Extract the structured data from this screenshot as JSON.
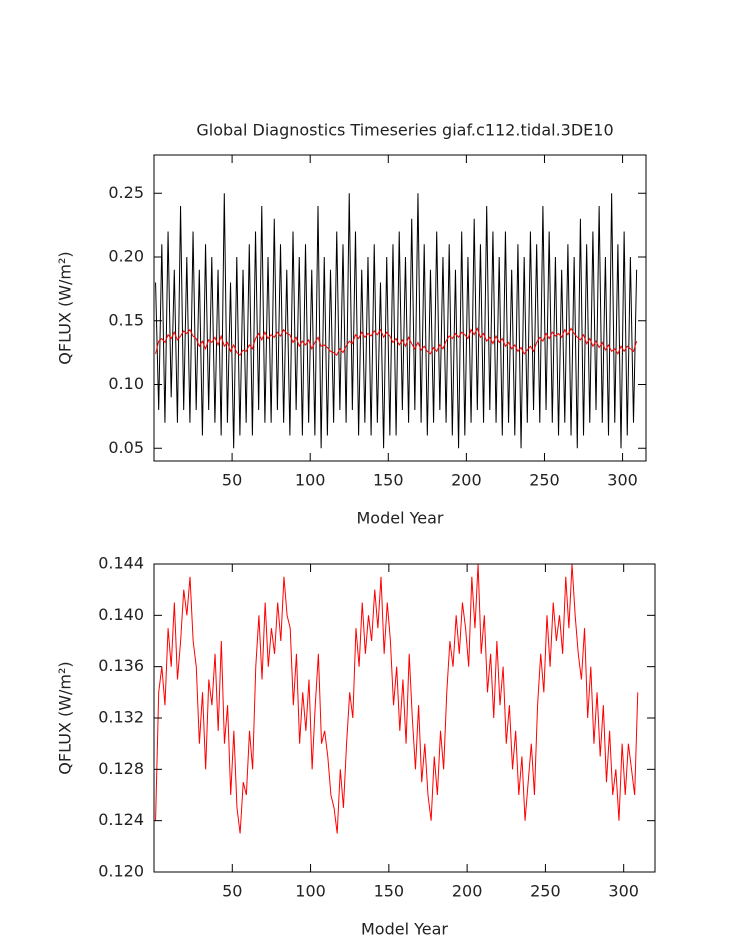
{
  "chart_data": [
    {
      "type": "line",
      "title": "Global Diagnostics Timeseries giaf.c112.tidal.3DE10",
      "xlabel": "Model Year",
      "ylabel": "QFLUX (W/m²)",
      "x": [
        1,
        3,
        5,
        7,
        9,
        11,
        13,
        15,
        17,
        19,
        21,
        23,
        25,
        27,
        29,
        31,
        33,
        35,
        37,
        39,
        41,
        43,
        45,
        47,
        49,
        51,
        53,
        55,
        57,
        59,
        61,
        63,
        65,
        67,
        69,
        71,
        73,
        75,
        77,
        79,
        81,
        83,
        85,
        87,
        89,
        91,
        93,
        95,
        97,
        99,
        101,
        103,
        105,
        107,
        109,
        111,
        113,
        115,
        117,
        119,
        121,
        123,
        125,
        127,
        129,
        131,
        133,
        135,
        137,
        139,
        141,
        143,
        145,
        147,
        149,
        151,
        153,
        155,
        157,
        159,
        161,
        163,
        165,
        167,
        169,
        171,
        173,
        175,
        177,
        179,
        181,
        183,
        185,
        187,
        189,
        191,
        193,
        195,
        197,
        199,
        201,
        203,
        205,
        207,
        209,
        211,
        213,
        215,
        217,
        219,
        221,
        223,
        225,
        227,
        229,
        231,
        233,
        235,
        237,
        239,
        241,
        243,
        245,
        247,
        249,
        251,
        253,
        255,
        257,
        259,
        261,
        263,
        265,
        267,
        269,
        271,
        273,
        275,
        277,
        279,
        281,
        283,
        285,
        287,
        289,
        291,
        293,
        295,
        297,
        299,
        301,
        303,
        305,
        307,
        309
      ],
      "series": [
        {
          "color": "#000000",
          "values": [
            0.18,
            0.08,
            0.21,
            0.07,
            0.22,
            0.09,
            0.19,
            0.07,
            0.24,
            0.08,
            0.2,
            0.07,
            0.22,
            0.08,
            0.19,
            0.06,
            0.21,
            0.08,
            0.2,
            0.07,
            0.19,
            0.06,
            0.25,
            0.07,
            0.18,
            0.05,
            0.2,
            0.06,
            0.19,
            0.07,
            0.21,
            0.06,
            0.22,
            0.08,
            0.24,
            0.07,
            0.2,
            0.07,
            0.23,
            0.08,
            0.21,
            0.07,
            0.19,
            0.06,
            0.22,
            0.08,
            0.2,
            0.06,
            0.21,
            0.07,
            0.19,
            0.06,
            0.24,
            0.05,
            0.2,
            0.06,
            0.19,
            0.07,
            0.22,
            0.08,
            0.21,
            0.07,
            0.25,
            0.08,
            0.22,
            0.06,
            0.19,
            0.07,
            0.2,
            0.06,
            0.21,
            0.07,
            0.18,
            0.05,
            0.2,
            0.06,
            0.21,
            0.06,
            0.22,
            0.08,
            0.2,
            0.07,
            0.23,
            0.08,
            0.25,
            0.07,
            0.21,
            0.06,
            0.19,
            0.07,
            0.22,
            0.08,
            0.2,
            0.07,
            0.21,
            0.06,
            0.19,
            0.05,
            0.22,
            0.06,
            0.2,
            0.07,
            0.23,
            0.08,
            0.21,
            0.07,
            0.24,
            0.08,
            0.22,
            0.07,
            0.2,
            0.06,
            0.22,
            0.07,
            0.19,
            0.06,
            0.21,
            0.05,
            0.2,
            0.07,
            0.22,
            0.08,
            0.21,
            0.07,
            0.24,
            0.08,
            0.22,
            0.07,
            0.2,
            0.06,
            0.19,
            0.07,
            0.21,
            0.06,
            0.2,
            0.05,
            0.23,
            0.06,
            0.21,
            0.07,
            0.22,
            0.08,
            0.24,
            0.07,
            0.2,
            0.06,
            0.25,
            0.07,
            0.21,
            0.05,
            0.22,
            0.06,
            0.2,
            0.07,
            0.19
          ]
        },
        {
          "color": "#ff0000",
          "values": [
            0.124,
            0.134,
            0.136,
            0.133,
            0.139,
            0.136,
            0.141,
            0.135,
            0.138,
            0.142,
            0.14,
            0.143,
            0.138,
            0.136,
            0.13,
            0.134,
            0.128,
            0.135,
            0.133,
            0.137,
            0.131,
            0.138,
            0.13,
            0.133,
            0.126,
            0.131,
            0.125,
            0.123,
            0.127,
            0.126,
            0.131,
            0.128,
            0.136,
            0.14,
            0.135,
            0.141,
            0.136,
            0.139,
            0.137,
            0.141,
            0.138,
            0.143,
            0.14,
            0.139,
            0.133,
            0.137,
            0.13,
            0.134,
            0.131,
            0.135,
            0.128,
            0.133,
            0.137,
            0.13,
            0.131,
            0.129,
            0.126,
            0.125,
            0.123,
            0.128,
            0.125,
            0.13,
            0.134,
            0.132,
            0.139,
            0.136,
            0.141,
            0.137,
            0.14,
            0.138,
            0.142,
            0.139,
            0.143,
            0.137,
            0.141,
            0.138,
            0.133,
            0.136,
            0.131,
            0.135,
            0.13,
            0.137,
            0.132,
            0.128,
            0.133,
            0.127,
            0.13,
            0.126,
            0.124,
            0.129,
            0.126,
            0.131,
            0.128,
            0.134,
            0.138,
            0.136,
            0.14,
            0.137,
            0.141,
            0.139,
            0.136,
            0.143,
            0.139,
            0.144,
            0.137,
            0.14,
            0.134,
            0.137,
            0.132,
            0.138,
            0.133,
            0.136,
            0.13,
            0.133,
            0.128,
            0.131,
            0.126,
            0.129,
            0.124,
            0.127,
            0.13,
            0.126,
            0.133,
            0.137,
            0.134,
            0.14,
            0.136,
            0.141,
            0.138,
            0.14,
            0.137,
            0.143,
            0.139,
            0.144,
            0.14,
            0.137,
            0.135,
            0.139,
            0.132,
            0.136,
            0.13,
            0.134,
            0.129,
            0.133,
            0.127,
            0.131,
            0.126,
            0.128,
            0.124,
            0.13,
            0.126,
            0.13,
            0.128,
            0.126,
            0.134
          ]
        }
      ],
      "xlim": [
        0,
        315
      ],
      "ylim": [
        0.04,
        0.28
      ],
      "xticks": [
        50,
        100,
        150,
        200,
        250,
        300
      ],
      "yticks": [
        0.05,
        {
          "value": 0.1,
          "label": "0.10"
        },
        0.15,
        {
          "value": 0.2,
          "label": "0.20"
        },
        0.25
      ]
    },
    {
      "type": "line",
      "xlabel": "Model Year",
      "ylabel": "QFLUX (W/m²)",
      "x": [
        1,
        3,
        5,
        7,
        9,
        11,
        13,
        15,
        17,
        19,
        21,
        23,
        25,
        27,
        29,
        31,
        33,
        35,
        37,
        39,
        41,
        43,
        45,
        47,
        49,
        51,
        53,
        55,
        57,
        59,
        61,
        63,
        65,
        67,
        69,
        71,
        73,
        75,
        77,
        79,
        81,
        83,
        85,
        87,
        89,
        91,
        93,
        95,
        97,
        99,
        101,
        103,
        105,
        107,
        109,
        111,
        113,
        115,
        117,
        119,
        121,
        123,
        125,
        127,
        129,
        131,
        133,
        135,
        137,
        139,
        141,
        143,
        145,
        147,
        149,
        151,
        153,
        155,
        157,
        159,
        161,
        163,
        165,
        167,
        169,
        171,
        173,
        175,
        177,
        179,
        181,
        183,
        185,
        187,
        189,
        191,
        193,
        195,
        197,
        199,
        201,
        203,
        205,
        207,
        209,
        211,
        213,
        215,
        217,
        219,
        221,
        223,
        225,
        227,
        229,
        231,
        233,
        235,
        237,
        239,
        241,
        243,
        245,
        247,
        249,
        251,
        253,
        255,
        257,
        259,
        261,
        263,
        265,
        267,
        269,
        271,
        273,
        275,
        277,
        279,
        281,
        283,
        285,
        287,
        289,
        291,
        293,
        295,
        297,
        299,
        301,
        303,
        305,
        307,
        309
      ],
      "series": [
        {
          "color": "#ff0000",
          "values": [
            0.124,
            0.134,
            0.136,
            0.133,
            0.139,
            0.136,
            0.141,
            0.135,
            0.138,
            0.142,
            0.14,
            0.143,
            0.138,
            0.136,
            0.13,
            0.134,
            0.128,
            0.135,
            0.133,
            0.137,
            0.131,
            0.138,
            0.13,
            0.133,
            0.126,
            0.131,
            0.125,
            0.123,
            0.127,
            0.126,
            0.131,
            0.128,
            0.136,
            0.14,
            0.135,
            0.141,
            0.136,
            0.139,
            0.137,
            0.141,
            0.138,
            0.143,
            0.14,
            0.139,
            0.133,
            0.137,
            0.13,
            0.134,
            0.131,
            0.135,
            0.128,
            0.133,
            0.137,
            0.13,
            0.131,
            0.129,
            0.126,
            0.125,
            0.123,
            0.128,
            0.125,
            0.13,
            0.134,
            0.132,
            0.139,
            0.136,
            0.141,
            0.137,
            0.14,
            0.138,
            0.142,
            0.139,
            0.143,
            0.137,
            0.141,
            0.138,
            0.133,
            0.136,
            0.131,
            0.135,
            0.13,
            0.137,
            0.132,
            0.128,
            0.133,
            0.127,
            0.13,
            0.126,
            0.124,
            0.129,
            0.126,
            0.131,
            0.128,
            0.134,
            0.138,
            0.136,
            0.14,
            0.137,
            0.141,
            0.139,
            0.136,
            0.143,
            0.139,
            0.144,
            0.137,
            0.14,
            0.134,
            0.137,
            0.132,
            0.138,
            0.133,
            0.136,
            0.13,
            0.133,
            0.128,
            0.131,
            0.126,
            0.129,
            0.124,
            0.127,
            0.13,
            0.126,
            0.133,
            0.137,
            0.134,
            0.14,
            0.136,
            0.141,
            0.138,
            0.14,
            0.137,
            0.143,
            0.139,
            0.144,
            0.14,
            0.137,
            0.135,
            0.139,
            0.132,
            0.136,
            0.13,
            0.134,
            0.129,
            0.133,
            0.127,
            0.131,
            0.126,
            0.128,
            0.124,
            0.13,
            0.126,
            0.13,
            0.128,
            0.126,
            0.134
          ]
        }
      ],
      "xlim": [
        0,
        320
      ],
      "ylim": [
        0.12,
        0.144
      ],
      "xticks": [
        50,
        100,
        150,
        200,
        250,
        300
      ],
      "yticks": [
        {
          "value": 0.12,
          "label": "0.120"
        },
        {
          "value": 0.124,
          "label": "0.124"
        },
        {
          "value": 0.128,
          "label": "0.128"
        },
        {
          "value": 0.132,
          "label": "0.132"
        },
        {
          "value": 0.136,
          "label": "0.136"
        },
        {
          "value": 0.14,
          "label": "0.140"
        },
        {
          "value": 0.144,
          "label": "0.144"
        }
      ]
    }
  ]
}
